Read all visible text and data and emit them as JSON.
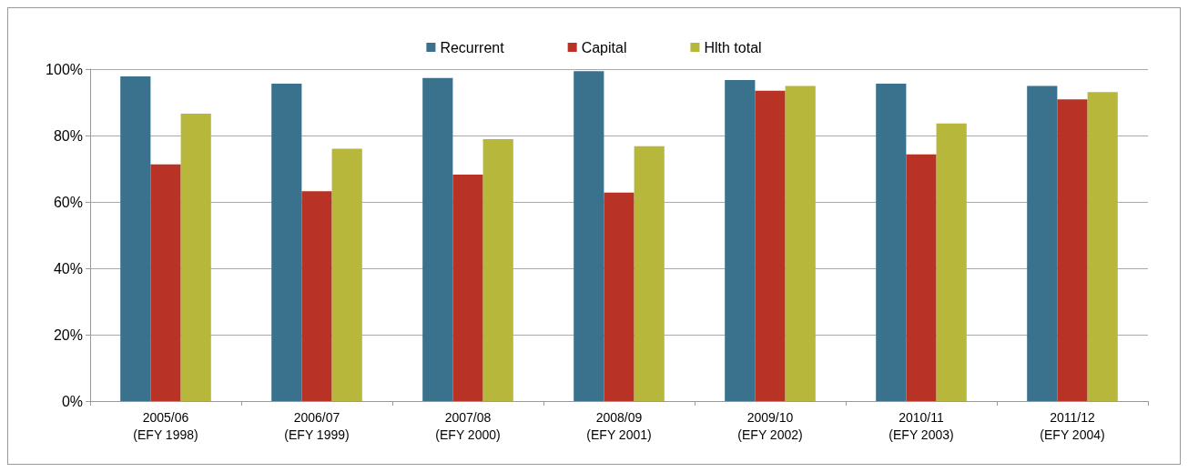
{
  "chart_data": {
    "type": "bar",
    "categories": [
      "2005/06\n(EFY 1998)",
      "2006/07\n(EFY 1999)",
      "2007/08\n(EFY 2000)",
      "2008/09\n(EFY 2001)",
      "2009/10\n(EFY 2002)",
      "2010/11\n(EFY 2003)",
      "2011/12\n(EFY 2004)"
    ],
    "series": [
      {
        "name": "Recurrent",
        "color": "#3a718c",
        "values": [
          97.8,
          95.6,
          97.3,
          99.4,
          96.7,
          95.6,
          94.9
        ]
      },
      {
        "name": "Capital",
        "color": "#b83226",
        "values": [
          71.3,
          63.2,
          68.2,
          62.8,
          93.5,
          74.3,
          90.9
        ]
      },
      {
        "name": "Hlth total",
        "color": "#b7b83b",
        "values": [
          86.6,
          76.0,
          78.9,
          76.8,
          94.9,
          83.6,
          93.1
        ]
      }
    ],
    "ylim": [
      0,
      100
    ],
    "yticks": [
      {
        "value": 0,
        "label": "0%"
      },
      {
        "value": 20,
        "label": "20%"
      },
      {
        "value": 40,
        "label": "40%"
      },
      {
        "value": 60,
        "label": "60%"
      },
      {
        "value": 80,
        "label": "80%"
      },
      {
        "value": 100,
        "label": "100%"
      }
    ],
    "grid": "y",
    "legend": "top"
  }
}
